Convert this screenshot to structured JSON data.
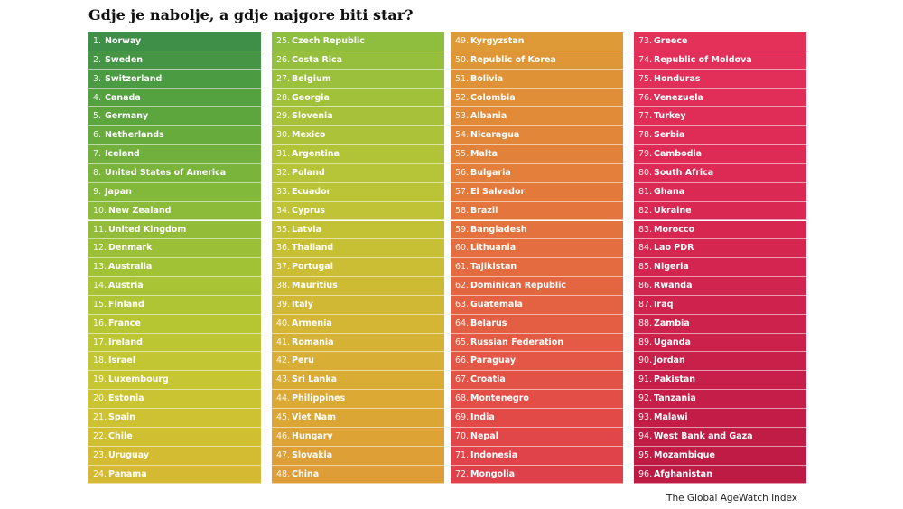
{
  "title": "Gdje je nabolje, a gdje najgore biti star?",
  "source": "The Global AgeWatch Index",
  "chart_data": {
    "type": "table",
    "columns": [
      {
        "colors": [
          "#3f8f49",
          "#459545",
          "#4b9b42",
          "#53a13f",
          "#5da63e",
          "#67ab3d",
          "#71b03c",
          "#7ab43b",
          "#83b93a",
          "#8bbb39",
          "#93bd38",
          "#9bc037",
          "#a2c236",
          "#a9c435",
          "#b0c534",
          "#b6c633",
          "#bcc632",
          "#c1c632",
          "#c6c532",
          "#cbc432",
          "#cec232",
          "#d1bf32",
          "#d3bc32",
          "#d5b933"
        ],
        "rows": [
          {
            "rank": "1.",
            "name": "Norway"
          },
          {
            "rank": "2.",
            "name": "Sweden"
          },
          {
            "rank": "3.",
            "name": "Switzerland"
          },
          {
            "rank": "4.",
            "name": "Canada"
          },
          {
            "rank": "5.",
            "name": "Germany"
          },
          {
            "rank": "6.",
            "name": "Netherlands"
          },
          {
            "rank": "7.",
            "name": "Iceland"
          },
          {
            "rank": "8.",
            "name": "United States of America"
          },
          {
            "rank": "9.",
            "name": "Japan"
          },
          {
            "rank": "10.",
            "name": "New Zealand"
          },
          {
            "rank": "11.",
            "name": "United Kingdom"
          },
          {
            "rank": "12.",
            "name": "Denmark"
          },
          {
            "rank": "13.",
            "name": "Australia"
          },
          {
            "rank": "14.",
            "name": "Austria"
          },
          {
            "rank": "15.",
            "name": "Finland"
          },
          {
            "rank": "16.",
            "name": "France"
          },
          {
            "rank": "17.",
            "name": "Ireland"
          },
          {
            "rank": "18.",
            "name": "Israel"
          },
          {
            "rank": "19.",
            "name": "Luxembourg"
          },
          {
            "rank": "20.",
            "name": "Estonia"
          },
          {
            "rank": "21.",
            "name": "Spain"
          },
          {
            "rank": "22.",
            "name": "Chile"
          },
          {
            "rank": "23.",
            "name": "Uruguay"
          },
          {
            "rank": "24.",
            "name": "Panama"
          }
        ]
      },
      {
        "colors": [
          "#8fbe3e",
          "#95bf3d",
          "#9bc03c",
          "#a1c13b",
          "#a7c23a",
          "#acc339",
          "#b1c438",
          "#b6c437",
          "#bbc436",
          "#bfc335",
          "#c3c134",
          "#c7bf34",
          "#cbbd34",
          "#cebb34",
          "#d1b834",
          "#d4b534",
          "#d6b234",
          "#d8af34",
          "#daac34",
          "#dba934",
          "#dca634",
          "#dda335",
          "#dea036",
          "#df9d37"
        ],
        "rows": [
          {
            "rank": "25.",
            "name": "Czech Republic"
          },
          {
            "rank": "26.",
            "name": "Costa Rica"
          },
          {
            "rank": "27.",
            "name": "Belgium"
          },
          {
            "rank": "28.",
            "name": "Georgia"
          },
          {
            "rank": "29.",
            "name": "Slovenia"
          },
          {
            "rank": "30.",
            "name": "Mexico"
          },
          {
            "rank": "31.",
            "name": "Argentina"
          },
          {
            "rank": "32.",
            "name": "Poland"
          },
          {
            "rank": "33.",
            "name": "Ecuador"
          },
          {
            "rank": "34.",
            "name": "Cyprus"
          },
          {
            "rank": "35.",
            "name": "Latvia"
          },
          {
            "rank": "36.",
            "name": "Thailand"
          },
          {
            "rank": "37.",
            "name": "Portugal"
          },
          {
            "rank": "38.",
            "name": "Mauritius"
          },
          {
            "rank": "39.",
            "name": "Italy"
          },
          {
            "rank": "40.",
            "name": "Armenia"
          },
          {
            "rank": "41.",
            "name": "Romania"
          },
          {
            "rank": "42.",
            "name": "Peru"
          },
          {
            "rank": "43.",
            "name": "Sri Lanka"
          },
          {
            "rank": "44.",
            "name": "Philippines"
          },
          {
            "rank": "45.",
            "name": "Viet Nam"
          },
          {
            "rank": "46.",
            "name": "Hungary"
          },
          {
            "rank": "47.",
            "name": "Slovakia"
          },
          {
            "rank": "48.",
            "name": "China"
          }
        ]
      },
      {
        "colors": [
          "#dd9a36",
          "#de9636",
          "#df9236",
          "#e08e37",
          "#e18a38",
          "#e28639",
          "#e2823a",
          "#e37e3b",
          "#e37a3c",
          "#e4763d",
          "#e4723e",
          "#e46e3f",
          "#e46a40",
          "#e46641",
          "#e46242",
          "#e45e43",
          "#e45a44",
          "#e45645",
          "#e35246",
          "#e34e47",
          "#e24a48",
          "#e14749",
          "#e0444a",
          "#df414b"
        ],
        "rows": [
          {
            "rank": "49.",
            "name": "Kyrgyzstan"
          },
          {
            "rank": "50.",
            "name": "Republic of Korea"
          },
          {
            "rank": "51.",
            "name": "Bolivia"
          },
          {
            "rank": "52.",
            "name": "Colombia"
          },
          {
            "rank": "53.",
            "name": "Albania"
          },
          {
            "rank": "54.",
            "name": "Nicaragua"
          },
          {
            "rank": "55.",
            "name": "Malta"
          },
          {
            "rank": "56.",
            "name": "Bulgaria"
          },
          {
            "rank": "57.",
            "name": "El Salvador"
          },
          {
            "rank": "58.",
            "name": "Brazil"
          },
          {
            "rank": "59.",
            "name": "Bangladesh"
          },
          {
            "rank": "60.",
            "name": "Lithuania"
          },
          {
            "rank": "61.",
            "name": "Tajikistan"
          },
          {
            "rank": "62.",
            "name": "Dominican Republic"
          },
          {
            "rank": "63.",
            "name": "Guatemala"
          },
          {
            "rank": "64.",
            "name": "Belarus"
          },
          {
            "rank": "65.",
            "name": "Russian Federation"
          },
          {
            "rank": "66.",
            "name": "Paraguay"
          },
          {
            "rank": "67.",
            "name": "Croatia"
          },
          {
            "rank": "68.",
            "name": "Montenegro"
          },
          {
            "rank": "69.",
            "name": "India"
          },
          {
            "rank": "70.",
            "name": "Nepal"
          },
          {
            "rank": "71.",
            "name": "Indonesia"
          },
          {
            "rank": "72.",
            "name": "Mongolia"
          }
        ]
      },
      {
        "colors": [
          "#e3315a",
          "#e2305a",
          "#e12f59",
          "#e02e58",
          "#df2d57",
          "#de2c56",
          "#dd2b55",
          "#dc2a54",
          "#da2953",
          "#d92852",
          "#d72751",
          "#d52650",
          "#d3254f",
          "#d1244e",
          "#cf234d",
          "#cd224c",
          "#cb214b",
          "#c9204a",
          "#c71f49",
          "#c51e48",
          "#c31d47",
          "#c11c46",
          "#bf1b45",
          "#bd1a44"
        ],
        "rows": [
          {
            "rank": "73.",
            "name": "Greece"
          },
          {
            "rank": "74.",
            "name": "Republic of Moldova"
          },
          {
            "rank": "75.",
            "name": "Honduras"
          },
          {
            "rank": "76.",
            "name": "Venezuela"
          },
          {
            "rank": "77.",
            "name": "Turkey"
          },
          {
            "rank": "78.",
            "name": "Serbia"
          },
          {
            "rank": "79.",
            "name": "Cambodia"
          },
          {
            "rank": "80.",
            "name": "South Africa"
          },
          {
            "rank": "81.",
            "name": "Ghana"
          },
          {
            "rank": "82.",
            "name": "Ukraine"
          },
          {
            "rank": "83.",
            "name": "Morocco"
          },
          {
            "rank": "84.",
            "name": "Lao PDR"
          },
          {
            "rank": "85.",
            "name": "Nigeria"
          },
          {
            "rank": "86.",
            "name": "Rwanda"
          },
          {
            "rank": "87.",
            "name": "Iraq"
          },
          {
            "rank": "88.",
            "name": "Zambia"
          },
          {
            "rank": "89.",
            "name": "Uganda"
          },
          {
            "rank": "90.",
            "name": "Jordan"
          },
          {
            "rank": "91.",
            "name": "Pakistan"
          },
          {
            "rank": "92.",
            "name": "Tanzania"
          },
          {
            "rank": "93.",
            "name": "Malawi"
          },
          {
            "rank": "94.",
            "name": "West Bank and Gaza"
          },
          {
            "rank": "95.",
            "name": "Mozambique"
          },
          {
            "rank": "96.",
            "name": "Afghanistan"
          }
        ]
      }
    ]
  }
}
